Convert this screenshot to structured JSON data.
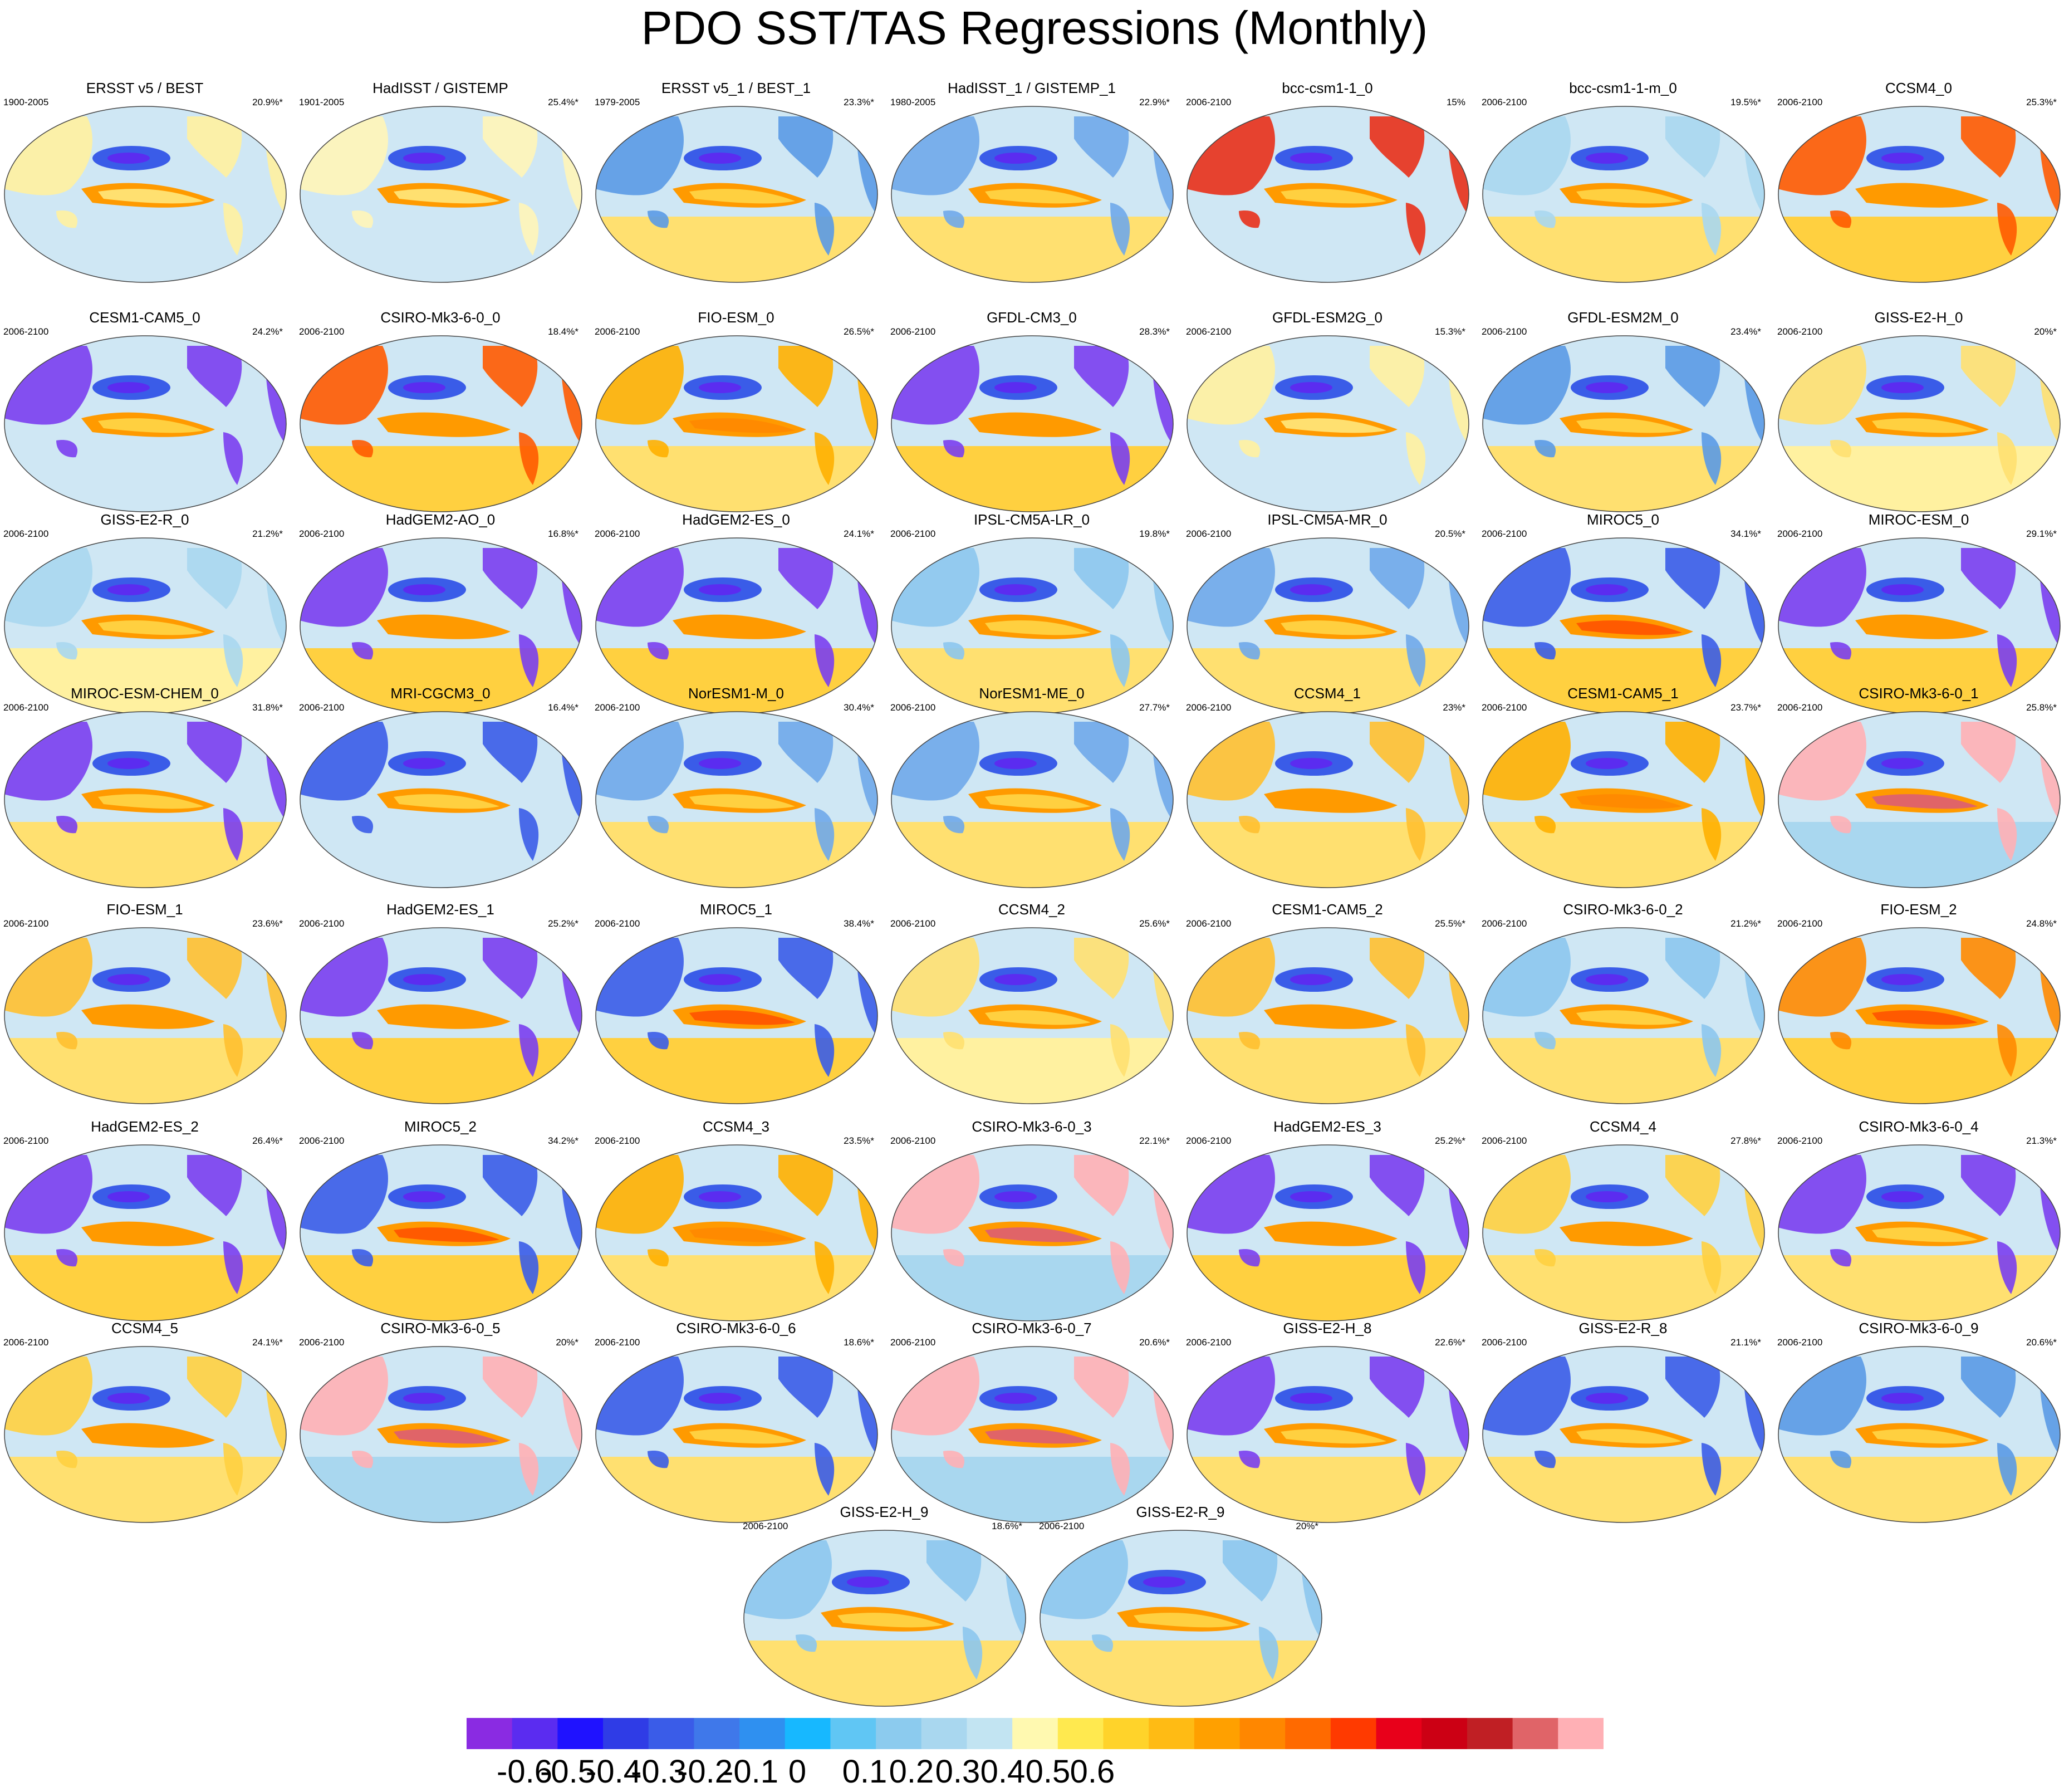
{
  "title": "PDO SST/TAS Regressions (Monthly)",
  "colorbar": {
    "colors": [
      "#8a2be2",
      "#5b2cf0",
      "#1f12ff",
      "#2f3ce6",
      "#3a5ce8",
      "#3f78ea",
      "#2f90f0",
      "#17b8ff",
      "#60c6f4",
      "#8ccbee",
      "#a9d7ef",
      "#c2e4f2",
      "#fff9b0",
      "#ffe94f",
      "#ffd32a",
      "#ffbb14",
      "#ffa000",
      "#ff8700",
      "#ff6a00",
      "#ff3a00",
      "#e8001a",
      "#cc0014",
      "#c01f24",
      "#e06468",
      "#ffb0b5"
    ],
    "tick_labels": [
      "-0.6",
      "-0.5",
      "-0.4",
      "-0.3",
      "-0.2",
      "-0.1",
      "0",
      "0.1",
      "0.2",
      "0.3",
      "0.4",
      "0.5",
      "0.6"
    ]
  },
  "panels": [
    {
      "title": "ERSST v5 / BEST",
      "period": "1900-2005",
      "pct": "20.9%*",
      "land": "#fff1a0",
      "south": "#cfe7f4",
      "extra": "#ffe070"
    },
    {
      "title": "HadISST / GISTEMP",
      "period": "1901-2005",
      "pct": "25.4%*",
      "land": "#fff5b8",
      "south": "#cfe7f4",
      "extra": "#ffe070"
    },
    {
      "title": "ERSST v5_1 / BEST_1",
      "period": "1979-2005",
      "pct": "23.3%*",
      "land": "#5a9ae6",
      "south": "#ffe070",
      "extra": "#ffd040"
    },
    {
      "title": "HadISST_1 / GISTEMP_1",
      "period": "1980-2005",
      "pct": "22.9%*",
      "land": "#6fa8ea",
      "south": "#ffe070",
      "extra": "#ffd040"
    },
    {
      "title": "bcc-csm1-1_0",
      "period": "2006-2100",
      "pct": "15%",
      "land": "#e8301a",
      "south": "#cfe7f4",
      "extra": "#ffd040"
    },
    {
      "title": "bcc-csm1-1-m_0",
      "period": "2006-2100",
      "pct": "19.5%*",
      "land": "#a9d7ef",
      "south": "#ffe070",
      "extra": "#ffd040"
    },
    {
      "title": "CCSM4_0",
      "period": "2006-2100",
      "pct": "25.3%*",
      "land": "#ff5a00",
      "south": "#ffd040",
      "extra": "#ff9a00"
    },
    {
      "title": "CESM1-CAM5_0",
      "period": "2006-2100",
      "pct": "24.2%*",
      "land": "#7a3ef0",
      "south": "#cfe7f4",
      "extra": "#ffd040"
    },
    {
      "title": "CSIRO-Mk3-6-0_0",
      "period": "2006-2100",
      "pct": "18.4%*",
      "land": "#ff5a00",
      "south": "#ffd040",
      "extra": "#ff9a00"
    },
    {
      "title": "FIO-ESM_0",
      "period": "2006-2100",
      "pct": "26.5%*",
      "land": "#ffb000",
      "south": "#ffe070",
      "extra": "#ff8a00"
    },
    {
      "title": "GFDL-CM3_0",
      "period": "2006-2100",
      "pct": "28.3%*",
      "land": "#7a3ef0",
      "south": "#ffd040",
      "extra": "#ff9a00"
    },
    {
      "title": "GFDL-ESM2G_0",
      "period": "2006-2100",
      "pct": "15.3%*",
      "land": "#fff1a0",
      "south": "#cfe7f4",
      "extra": "#ffe070"
    },
    {
      "title": "GFDL-ESM2M_0",
      "period": "2006-2100",
      "pct": "23.4%*",
      "land": "#5a9ae6",
      "south": "#ffe070",
      "extra": "#ffd040"
    },
    {
      "title": "GISS-E2-H_0",
      "period": "2006-2100",
      "pct": "20%*",
      "land": "#ffe070",
      "south": "#fff1a0",
      "extra": "#ffd040"
    },
    {
      "title": "GISS-E2-R_0",
      "period": "2006-2100",
      "pct": "21.2%*",
      "land": "#a9d7ef",
      "south": "#fff1a0",
      "extra": "#ffd040"
    },
    {
      "title": "HadGEM2-AO_0",
      "period": "2006-2100",
      "pct": "16.8%*",
      "land": "#7a3ef0",
      "south": "#ffd040",
      "extra": "#ff9a00"
    },
    {
      "title": "HadGEM2-ES_0",
      "period": "2006-2100",
      "pct": "24.1%*",
      "land": "#7a3ef0",
      "south": "#ffd040",
      "extra": "#ff9a00"
    },
    {
      "title": "IPSL-CM5A-LR_0",
      "period": "2006-2100",
      "pct": "19.8%*",
      "land": "#8cc6ee",
      "south": "#ffe070",
      "extra": "#ffd040"
    },
    {
      "title": "IPSL-CM5A-MR_0",
      "period": "2006-2100",
      "pct": "20.5%*",
      "land": "#6fa8ea",
      "south": "#ffe070",
      "extra": "#ffd040"
    },
    {
      "title": "MIROC5_0",
      "period": "2006-2100",
      "pct": "34.1%*",
      "land": "#3a5ce8",
      "south": "#ffd040",
      "extra": "#ff5a00"
    },
    {
      "title": "MIROC-ESM_0",
      "period": "2006-2100",
      "pct": "29.1%*",
      "land": "#7a3ef0",
      "south": "#ffd040",
      "extra": "#ff9a00"
    },
    {
      "title": "MIROC-ESM-CHEM_0",
      "period": "2006-2100",
      "pct": "31.8%*",
      "land": "#7a3ef0",
      "south": "#ffe070",
      "extra": "#ffd040"
    },
    {
      "title": "MRI-CGCM3_0",
      "period": "2006-2100",
      "pct": "16.4%*",
      "land": "#3a5ce8",
      "south": "#cfe7f4",
      "extra": "#ffd040"
    },
    {
      "title": "NorESM1-M_0",
      "period": "2006-2100",
      "pct": "30.4%*",
      "land": "#6fa8ea",
      "south": "#ffe070",
      "extra": "#ffd040"
    },
    {
      "title": "NorESM1-ME_0",
      "period": "2006-2100",
      "pct": "27.7%*",
      "land": "#6fa8ea",
      "south": "#ffe070",
      "extra": "#ffd040"
    },
    {
      "title": "CCSM4_1",
      "period": "2006-2100",
      "pct": "23%*",
      "land": "#ffc030",
      "south": "#ffe070",
      "extra": "#ff9a00"
    },
    {
      "title": "CESM1-CAM5_1",
      "period": "2006-2100",
      "pct": "23.7%*",
      "land": "#ffb000",
      "south": "#ffe070",
      "extra": "#ff8a00"
    },
    {
      "title": "CSIRO-Mk3-6-0_1",
      "period": "2006-2100",
      "pct": "25.8%*",
      "land": "#ffb0b5",
      "south": "#a9d7ef",
      "extra": "#e06468"
    },
    {
      "title": "FIO-ESM_1",
      "period": "2006-2100",
      "pct": "23.6%*",
      "land": "#ffc030",
      "south": "#ffe070",
      "extra": "#ff9a00"
    },
    {
      "title": "HadGEM2-ES_1",
      "period": "2006-2100",
      "pct": "25.2%*",
      "land": "#7a3ef0",
      "south": "#ffd040",
      "extra": "#ff9a00"
    },
    {
      "title": "MIROC5_1",
      "period": "2006-2100",
      "pct": "38.4%*",
      "land": "#3a5ce8",
      "south": "#ffd040",
      "extra": "#ff5a00"
    },
    {
      "title": "CCSM4_2",
      "period": "2006-2100",
      "pct": "25.6%*",
      "land": "#ffe070",
      "south": "#fff1a0",
      "extra": "#ffd040"
    },
    {
      "title": "CESM1-CAM5_2",
      "period": "2006-2100",
      "pct": "25.5%*",
      "land": "#ffc030",
      "south": "#ffe070",
      "extra": "#ff9a00"
    },
    {
      "title": "CSIRO-Mk3-6-0_2",
      "period": "2006-2100",
      "pct": "21.2%*",
      "land": "#8cc6ee",
      "south": "#ffe070",
      "extra": "#ffd040"
    },
    {
      "title": "FIO-ESM_2",
      "period": "2006-2100",
      "pct": "24.8%*",
      "land": "#ff8a00",
      "south": "#ffd040",
      "extra": "#ff5a00"
    },
    {
      "title": "HadGEM2-ES_2",
      "period": "2006-2100",
      "pct": "26.4%*",
      "land": "#7a3ef0",
      "south": "#ffd040",
      "extra": "#ff9a00"
    },
    {
      "title": "MIROC5_2",
      "period": "2006-2100",
      "pct": "34.2%*",
      "land": "#3a5ce8",
      "south": "#ffd040",
      "extra": "#ff5a00"
    },
    {
      "title": "CCSM4_3",
      "period": "2006-2100",
      "pct": "23.5%*",
      "land": "#ffb000",
      "south": "#ffe070",
      "extra": "#ff8a00"
    },
    {
      "title": "CSIRO-Mk3-6-0_3",
      "period": "2006-2100",
      "pct": "22.1%*",
      "land": "#ffb0b5",
      "south": "#a9d7ef",
      "extra": "#e06468"
    },
    {
      "title": "HadGEM2-ES_3",
      "period": "2006-2100",
      "pct": "25.2%*",
      "land": "#7a3ef0",
      "south": "#ffd040",
      "extra": "#ff9a00"
    },
    {
      "title": "CCSM4_4",
      "period": "2006-2100",
      "pct": "27.8%*",
      "land": "#ffd040",
      "south": "#ffe070",
      "extra": "#ff9a00"
    },
    {
      "title": "CSIRO-Mk3-6-0_4",
      "period": "2006-2100",
      "pct": "21.3%*",
      "land": "#7a3ef0",
      "south": "#ffe070",
      "extra": "#ffd040"
    },
    {
      "title": "CCSM4_5",
      "period": "2006-2100",
      "pct": "24.1%*",
      "land": "#ffd040",
      "south": "#ffe070",
      "extra": "#ff9a00"
    },
    {
      "title": "CSIRO-Mk3-6-0_5",
      "period": "2006-2100",
      "pct": "20%*",
      "land": "#ffb0b5",
      "south": "#a9d7ef",
      "extra": "#e06468"
    },
    {
      "title": "CSIRO-Mk3-6-0_6",
      "period": "2006-2100",
      "pct": "18.6%*",
      "land": "#3a5ce8",
      "south": "#ffe070",
      "extra": "#ffd040"
    },
    {
      "title": "CSIRO-Mk3-6-0_7",
      "period": "2006-2100",
      "pct": "20.6%*",
      "land": "#ffb0b5",
      "south": "#a9d7ef",
      "extra": "#e06468"
    },
    {
      "title": "GISS-E2-H_8",
      "period": "2006-2100",
      "pct": "22.6%*",
      "land": "#7a3ef0",
      "south": "#ffe070",
      "extra": "#ffd040"
    },
    {
      "title": "GISS-E2-R_8",
      "period": "2006-2100",
      "pct": "21.1%*",
      "land": "#3a5ce8",
      "south": "#ffe070",
      "extra": "#ffd040"
    },
    {
      "title": "CSIRO-Mk3-6-0_9",
      "period": "2006-2100",
      "pct": "20.6%*",
      "land": "#5a9ae6",
      "south": "#ffe070",
      "extra": "#ffd040"
    },
    {
      "title": "GISS-E2-H_9",
      "period": "2006-2100",
      "pct": "18.6%*",
      "land": "#8cc6ee",
      "south": "#ffe070",
      "extra": "#ffd040"
    },
    {
      "title": "GISS-E2-R_9",
      "period": "2006-2100",
      "pct": "20%*",
      "land": "#8cc6ee",
      "south": "#ffe070",
      "extra": "#ffd040"
    }
  ]
}
